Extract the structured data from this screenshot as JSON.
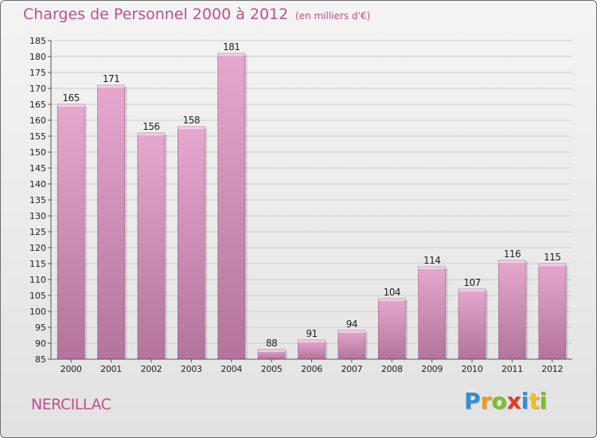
{
  "header": {
    "title": "Charges de Personnel 2000 à 2012",
    "unit": "(en milliers d'€)"
  },
  "footer": {
    "commune": "NERCILLAC",
    "logo": "Proxiti",
    "logo_letters": [
      {
        "ch": "P",
        "color": "#2f8fd8"
      },
      {
        "ch": "r",
        "color": "#f29a1c"
      },
      {
        "ch": "o",
        "color": "#7bbf2a"
      },
      {
        "ch": "x",
        "color": "#e23a2a"
      },
      {
        "ch": "i",
        "color": "#2f8fd8"
      },
      {
        "ch": "t",
        "color": "#f2c21c"
      },
      {
        "ch": "i",
        "color": "#7bbf2a"
      }
    ]
  },
  "colors": {
    "bar_light": "#e6a8cf",
    "bar_dark": "#b3749c",
    "bar_edge": "#9c5d86",
    "grid": "#cfcfcf",
    "axis": "#555555",
    "text": "#222222",
    "accent": "#c0508c"
  },
  "chart_data": {
    "type": "bar",
    "title": "Charges de Personnel 2000 à 2012",
    "subtitle": "(en milliers d'€)",
    "categories": [
      "2000",
      "2001",
      "2002",
      "2003",
      "2004",
      "2005",
      "2006",
      "2007",
      "2008",
      "2009",
      "2010",
      "2011",
      "2012"
    ],
    "values": [
      165,
      171,
      156,
      158,
      181,
      88,
      91,
      94,
      104,
      114,
      107,
      116,
      115
    ],
    "ylim": [
      85,
      185
    ],
    "yticks": [
      85,
      90,
      95,
      100,
      105,
      110,
      115,
      120,
      125,
      130,
      135,
      140,
      145,
      150,
      155,
      160,
      165,
      170,
      175,
      180,
      185
    ],
    "grid": true,
    "xlabel": "",
    "ylabel": ""
  }
}
